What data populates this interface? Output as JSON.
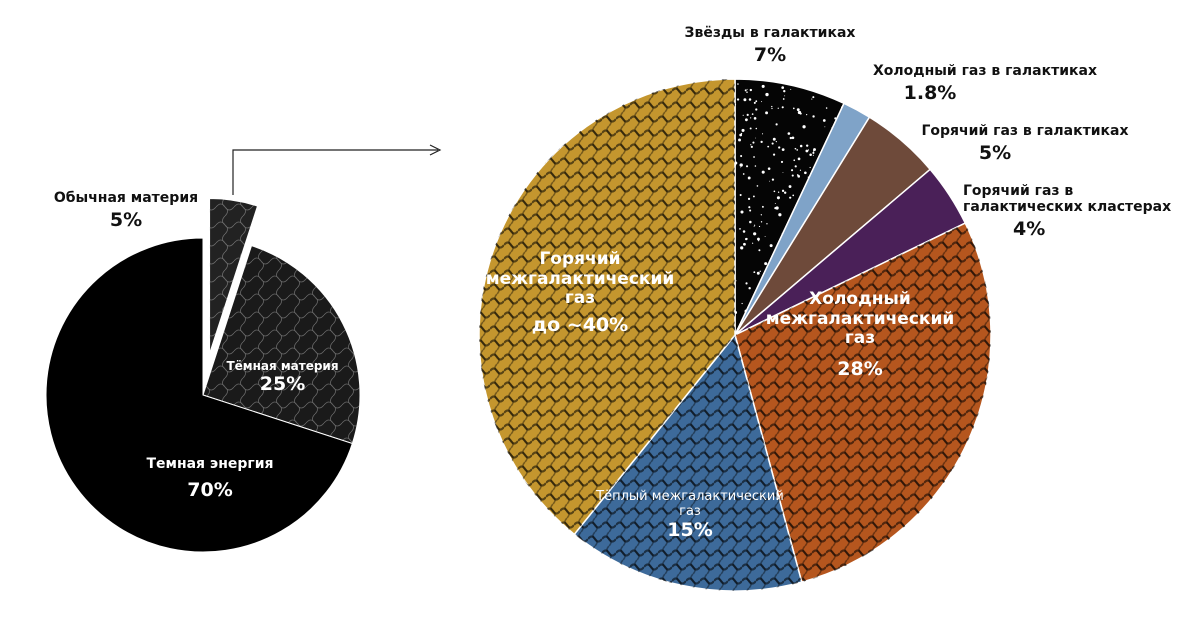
{
  "chart_data": [
    {
      "type": "pie",
      "start": "12 o'clock, clockwise",
      "slices": [
        {
          "label": "Обычная материя",
          "value_label": "5%",
          "value": 5,
          "color": "#222222",
          "exploded": true
        },
        {
          "label": "Тёмная материя",
          "value_label": "25%",
          "value": 25,
          "color": "#1a1a1a"
        },
        {
          "label": "Темная энергия",
          "value_label": "70%",
          "value": 70,
          "color": "#000000"
        }
      ]
    },
    {
      "type": "pie",
      "start": "12 o'clock, clockwise",
      "expands": "Обычная материя",
      "slices": [
        {
          "label": "Звёзды в галактиках",
          "value_label": "7%",
          "value": 7,
          "color": "#050505"
        },
        {
          "label": "Холодный газ в галактиках",
          "value_label": "1.8%",
          "value": 1.8,
          "color": "#7fa3c8"
        },
        {
          "label": "Горячий газ в галактиках",
          "value_label": "5%",
          "value": 5,
          "color": "#6e4a3a"
        },
        {
          "label": "Горячий газ в галактических кластерах",
          "value_label": "4%",
          "value": 4,
          "color": "#4a2058"
        },
        {
          "label": "Холодный межгалактический газ",
          "value_label": "28%",
          "value": 28,
          "color": "#b5561e"
        },
        {
          "label": "Тёплый межгалактический газ",
          "value_label": "15%",
          "value": 15,
          "color": "#3d6a9a"
        },
        {
          "label": "Горячий межгалактический газ",
          "value_label": "до ~40%",
          "value": 39.2,
          "color": "#c4962e"
        }
      ]
    }
  ]
}
